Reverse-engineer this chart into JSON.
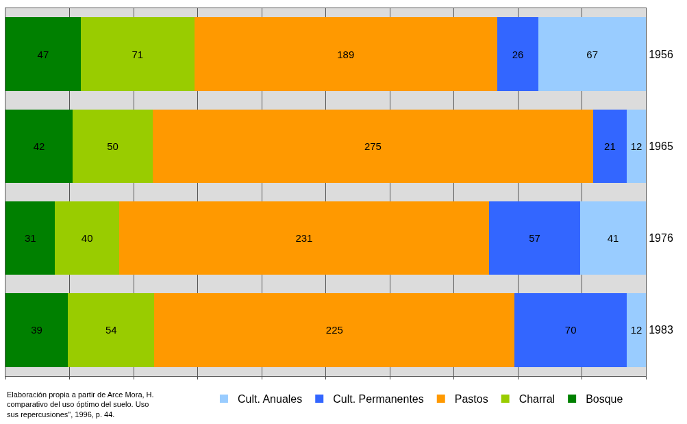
{
  "chart_data": {
    "type": "bar",
    "orientation": "horizontal",
    "stacked": true,
    "categories": [
      "1956",
      "1965",
      "1976",
      "1983"
    ],
    "series": [
      {
        "name": "Bosque",
        "color": "#008000",
        "values": [
          47,
          42,
          31,
          39
        ]
      },
      {
        "name": "Charral",
        "color": "#99cc00",
        "values": [
          71,
          50,
          40,
          54
        ]
      },
      {
        "name": "Pastos",
        "color": "#ff9900",
        "values": [
          189,
          275,
          231,
          225
        ]
      },
      {
        "name": "Cult. Permanentes",
        "color": "#3366ff",
        "values": [
          26,
          21,
          57,
          70
        ]
      },
      {
        "name": "Cult. Anuales",
        "color": "#99ccff",
        "values": [
          67,
          12,
          41,
          12
        ]
      }
    ],
    "xlim": [
      0,
      400
    ],
    "xticks": [
      {
        "value": 0,
        "label": null
      },
      {
        "value": 40,
        "label": null
      },
      {
        "value": 80,
        "label": null
      },
      {
        "value": 120,
        "label": null
      },
      {
        "value": 160,
        "label": null
      },
      {
        "value": 200,
        "label": null
      },
      {
        "value": 240,
        "label": null
      },
      {
        "value": 280,
        "label": null
      },
      {
        "value": 320,
        "label": null
      },
      {
        "value": 360,
        "label": null
      },
      {
        "value": 400,
        "label": null
      }
    ],
    "tick_labels": "y",
    "grid": "x",
    "legend": "bottom",
    "data_labels": true,
    "annotations": [
      "Elaboración propia a partir de Arce Mora, H.",
      "comparativo del uso óptimo del suelo. Uso",
      "sus repercusiones\", 1996, p. 44."
    ]
  }
}
